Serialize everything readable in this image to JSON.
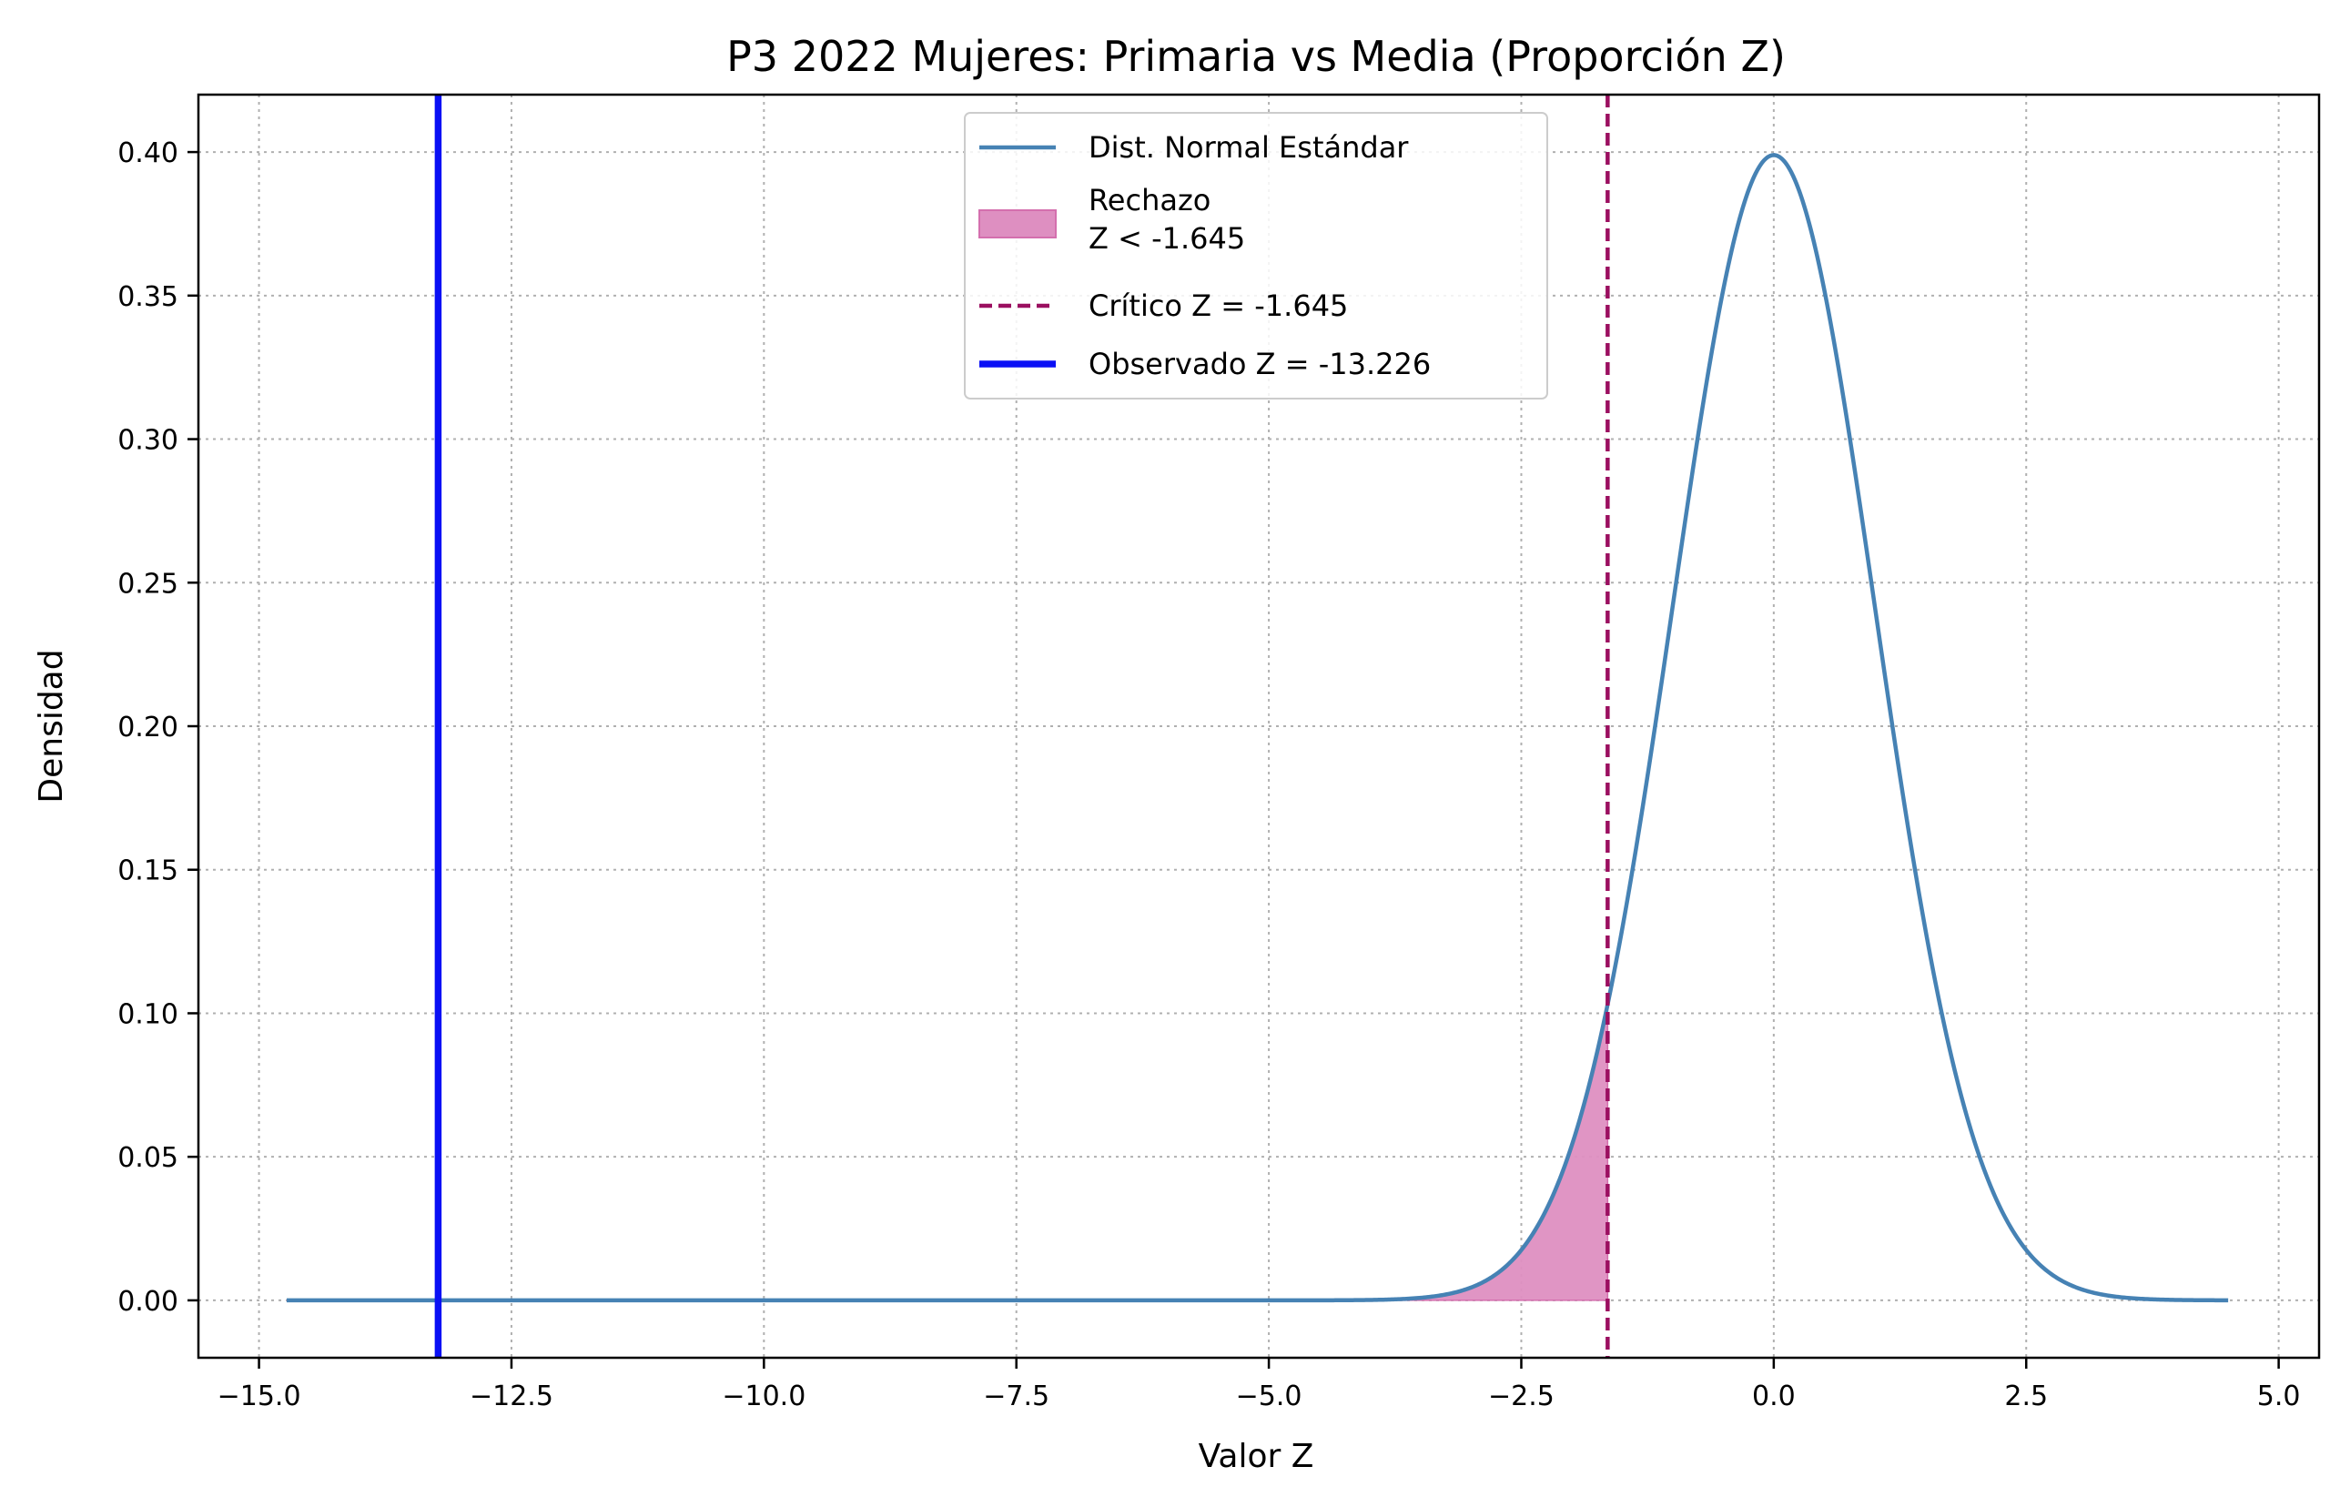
{
  "chart_data": {
    "type": "line",
    "title": "P3 2022 Mujeres: Primaria vs Media (Proporción Z)",
    "xlabel": "Valor Z",
    "ylabel": "Densidad",
    "xlim": [
      -15.6,
      5.4
    ],
    "ylim": [
      -0.02,
      0.42
    ],
    "x_ticks": [
      -15.0,
      -12.5,
      -10.0,
      -7.5,
      -5.0,
      -2.5,
      0.0,
      2.5,
      5.0
    ],
    "x_tick_labels": [
      "−15.0",
      "−12.5",
      "−10.0",
      "−7.5",
      "−5.0",
      "−2.5",
      "0.0",
      "2.5",
      "5.0"
    ],
    "y_ticks": [
      0.0,
      0.05,
      0.1,
      0.15,
      0.2,
      0.25,
      0.3,
      0.35,
      0.4
    ],
    "y_tick_labels": [
      "0.00",
      "0.05",
      "0.10",
      "0.15",
      "0.20",
      "0.25",
      "0.30",
      "0.35",
      "0.40"
    ],
    "grid": true,
    "legend_position": "top-center",
    "curve": {
      "distribution": "standard-normal",
      "x_range": [
        -14.726,
        4.5
      ]
    },
    "rejection_region": {
      "upper": -1.645
    },
    "critical_z": -1.645,
    "observed_z": -13.226,
    "legend": [
      {
        "key": "normal",
        "label": "Dist. Normal Estándar",
        "style": "line",
        "color": "#4682b4"
      },
      {
        "key": "rejection",
        "label": [
          "Rechazo",
          "Z < -1.645"
        ],
        "style": "patch",
        "color": "#de8fc1"
      },
      {
        "key": "critical",
        "label": "Crítico Z = -1.645",
        "style": "dashed",
        "color": "#9b0f60"
      },
      {
        "key": "observed",
        "label": "Observado Z = -13.226",
        "style": "thick",
        "color": "#0a10f5"
      }
    ],
    "colors": {
      "curve": "#4682b4",
      "rejection_fill": "#de8fc1",
      "rejection_edge": "#d46fae",
      "critical": "#9b0f60",
      "observed": "#0a10f5"
    }
  }
}
